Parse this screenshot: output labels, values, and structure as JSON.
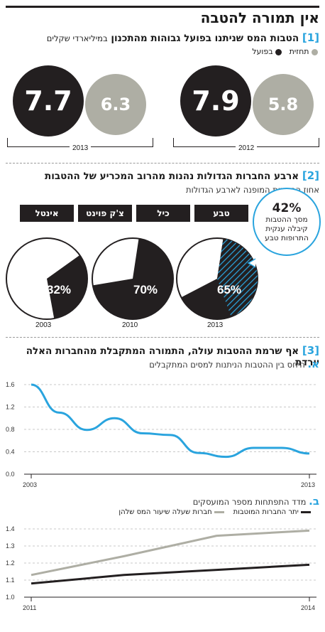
{
  "title": "אין תמורה להטבה",
  "colors": {
    "black": "#231f20",
    "gray": "#aeaea4",
    "blue": "#2aa4de"
  },
  "section1": {
    "num": "1",
    "title": "הטבות המס שניתנו בפועל גבוהות מהתכנון",
    "unit": "במיליארדי שקלים",
    "legend": {
      "forecast": "תחזית",
      "actual": "בפועל"
    },
    "groups": [
      {
        "year": "2013",
        "actual": "7.7",
        "forecast": "6.3"
      },
      {
        "year": "2012",
        "actual": "7.9",
        "forecast": "5.8"
      }
    ]
  },
  "section2": {
    "num": "2",
    "title": "ארבע החברות הגדולות נהנות מהרוב המכריע של ההטבות",
    "subtitle": "אחוז ההטבות המופנה לארבע הגדולות",
    "companies": [
      "אינטל",
      "צ'ק פוינט",
      "כיל",
      "טבע"
    ],
    "bubble": {
      "percent": "42%",
      "text": "מסך ההטבות קיבלה ענקית התרופות טבע"
    },
    "pies": [
      {
        "year": "2003",
        "label": "32%"
      },
      {
        "year": "2010",
        "label": "70%"
      },
      {
        "year": "2013",
        "label": "65%"
      }
    ]
  },
  "section3": {
    "num": "3",
    "title": "אף שרמת ההטבות עולה, התמורה המתקבלת מהחברות האלה יורדת",
    "part_a": {
      "letter": "א.",
      "text": "היחס בין ההטבות הניתנות למסים המתקבלים"
    },
    "part_b": {
      "letter": "ב.",
      "text": "מדד התפתחות מספר המועסקים"
    },
    "legend_b": {
      "other": "יתר החברות המוטבות",
      "low_tax": "חברות שעלה שיעור המס שלהן"
    }
  },
  "chart_data": [
    {
      "type": "bar",
      "title": "הטבות המס שניתנו בפועל גבוהות מהתכנון",
      "unit": "במיליארדי שקלים",
      "categories": [
        "2012",
        "2013"
      ],
      "series": [
        {
          "name": "בפועל",
          "values": [
            7.9,
            7.7
          ]
        },
        {
          "name": "תחזית",
          "values": [
            5.8,
            6.3
          ]
        }
      ]
    },
    {
      "type": "pie",
      "title": "ארבע החברות הגדולות נהנות מהרוב המכריע של ההטבות",
      "subtitle": "אחוז ההטבות המופנה לארבע הגדולות",
      "categories": [
        "2003",
        "2010",
        "2013"
      ],
      "values": [
        32,
        70,
        65
      ],
      "teva_share_2013": 42
    },
    {
      "type": "line",
      "title": "היחס בין ההטבות הניתנות למסים המתקבלים",
      "x": [
        2003,
        2004,
        2005,
        2006,
        2007,
        2008,
        2009,
        2010,
        2011,
        2012,
        2013
      ],
      "series": [
        {
          "values": [
            1.6,
            1.1,
            0.79,
            1.0,
            0.73,
            0.7,
            0.38,
            0.31,
            0.47,
            0.47,
            0.37
          ]
        }
      ],
      "ylim": [
        0,
        1.6
      ],
      "yticks": [
        0,
        0.4,
        0.8,
        1.2,
        1.6
      ],
      "xticks": [
        "2003",
        "2013"
      ],
      "grid": true
    },
    {
      "type": "line",
      "title": "מדד התפתחות מספר המועסקים",
      "x": [
        2011,
        2012,
        2013,
        2014
      ],
      "series": [
        {
          "name": "חברות שעלה שיעור המס שלהן",
          "color": "#aeaea4",
          "values": [
            1.13,
            1.24,
            1.36,
            1.39
          ]
        },
        {
          "name": "יתר החברות המוטבות",
          "color": "#231f20",
          "values": [
            1.08,
            1.13,
            1.16,
            1.19
          ]
        }
      ],
      "ylim": [
        1.0,
        1.4
      ],
      "yticks": [
        1.0,
        1.1,
        1.2,
        1.3,
        1.4
      ],
      "xticks": [
        "2011",
        "2014"
      ],
      "grid": true
    }
  ]
}
